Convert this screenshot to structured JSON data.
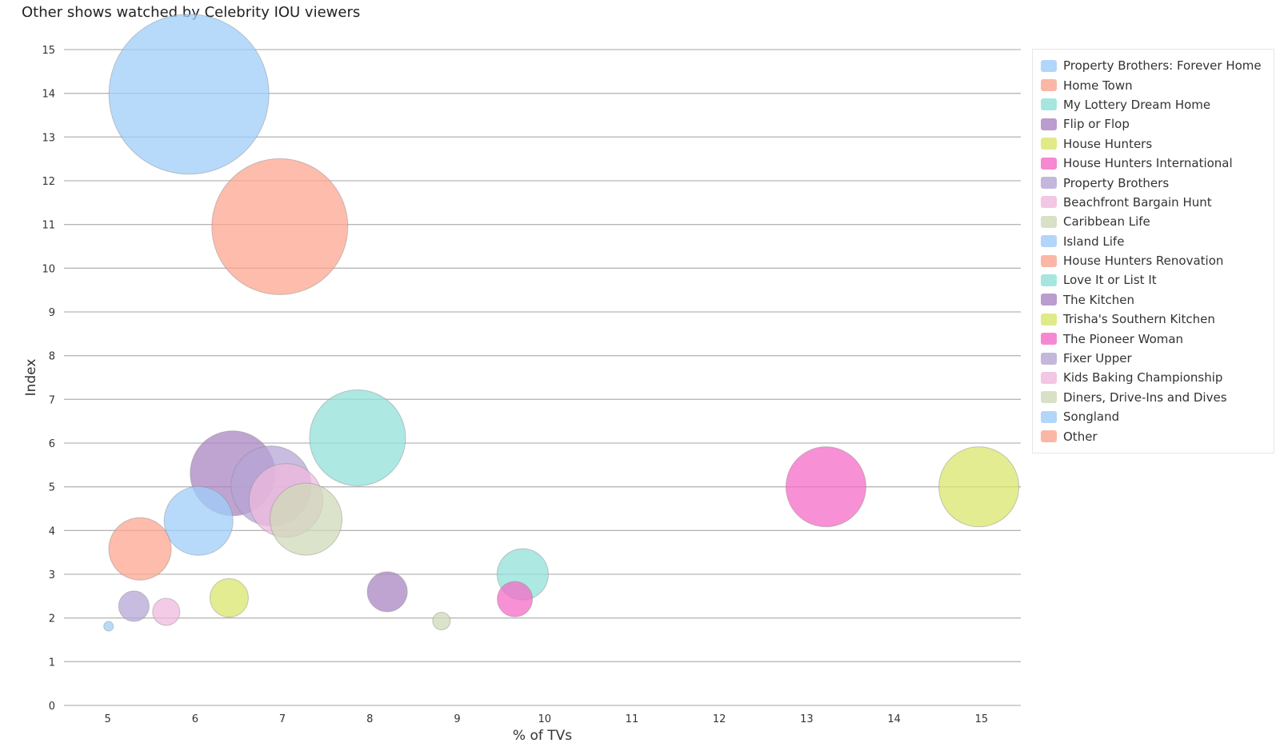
{
  "chart_data": {
    "type": "scatter",
    "title": "Other shows watched by Celebrity IOU viewers",
    "xlabel": "% of TVs",
    "ylabel": "Index",
    "xlim": [
      4.5,
      15.45
    ],
    "ylim": [
      0,
      15
    ],
    "xticks": [
      5,
      6,
      7,
      8,
      9,
      10,
      11,
      12,
      13,
      14,
      15
    ],
    "yticks": [
      0,
      1,
      2,
      3,
      4,
      5,
      6,
      7,
      8,
      9,
      10,
      11,
      12,
      13,
      14,
      15
    ],
    "grid": "horizontal",
    "legend_position": "right",
    "series": [
      {
        "name": "Property Brothers: Forever Home",
        "x": 5.93,
        "y": 13.98,
        "size": 100,
        "color": "#9fcdfa"
      },
      {
        "name": "Home Town",
        "x": 6.97,
        "y": 10.95,
        "size": 85,
        "color": "#fca590"
      },
      {
        "name": "My Lottery Dream Home",
        "x": 7.86,
        "y": 6.12,
        "size": 60,
        "color": "#92e0d8"
      },
      {
        "name": "Flip or Flop",
        "x": 6.43,
        "y": 5.31,
        "size": 53,
        "color": "#a985c3"
      },
      {
        "name": "House Hunters",
        "x": 14.97,
        "y": 5.0,
        "size": 50,
        "color": "#d9e56b"
      },
      {
        "name": "House Hunters International",
        "x": 13.22,
        "y": 5.0,
        "size": 50,
        "color": "#f56bc7"
      },
      {
        "name": "Property Brothers",
        "x": 6.87,
        "y": 5.02,
        "size": 50,
        "color": "#b6a6d6"
      },
      {
        "name": "Beachfront Bargain Hunt",
        "x": 7.04,
        "y": 4.69,
        "size": 46,
        "color": "#efbadd"
      },
      {
        "name": "Caribbean Life",
        "x": 7.27,
        "y": 4.26,
        "size": 45,
        "color": "#cfdab8"
      },
      {
        "name": "Island Life",
        "x": 6.04,
        "y": 4.22,
        "size": 43,
        "color": "#9fcdfa"
      },
      {
        "name": "House Hunters Renovation",
        "x": 5.37,
        "y": 3.58,
        "size": 39,
        "color": "#fca590"
      },
      {
        "name": "Love It or List It",
        "x": 9.75,
        "y": 3.0,
        "size": 32,
        "color": "#92e0d8"
      },
      {
        "name": "The Kitchen",
        "x": 8.2,
        "y": 2.6,
        "size": 25,
        "color": "#a985c3"
      },
      {
        "name": "Trisha's Southern Kitchen",
        "x": 6.39,
        "y": 2.46,
        "size": 24,
        "color": "#d9e56b"
      },
      {
        "name": "The Pioneer Woman",
        "x": 9.66,
        "y": 2.43,
        "size": 22,
        "color": "#f56bc7"
      },
      {
        "name": "Fixer Upper",
        "x": 5.3,
        "y": 2.27,
        "size": 19,
        "color": "#b6a6d6"
      },
      {
        "name": "Kids Baking Championship",
        "x": 5.67,
        "y": 2.14,
        "size": 17,
        "color": "#efbadd"
      },
      {
        "name": "Diners, Drive-Ins and Dives",
        "x": 8.82,
        "y": 1.93,
        "size": 11,
        "color": "#cfdab8"
      },
      {
        "name": "Songland",
        "x": 5.01,
        "y": 1.81,
        "size": 6,
        "color": "#9fcdfa"
      },
      {
        "name": "Other",
        "x": null,
        "y": null,
        "size": null,
        "color": "#fca590"
      }
    ]
  }
}
